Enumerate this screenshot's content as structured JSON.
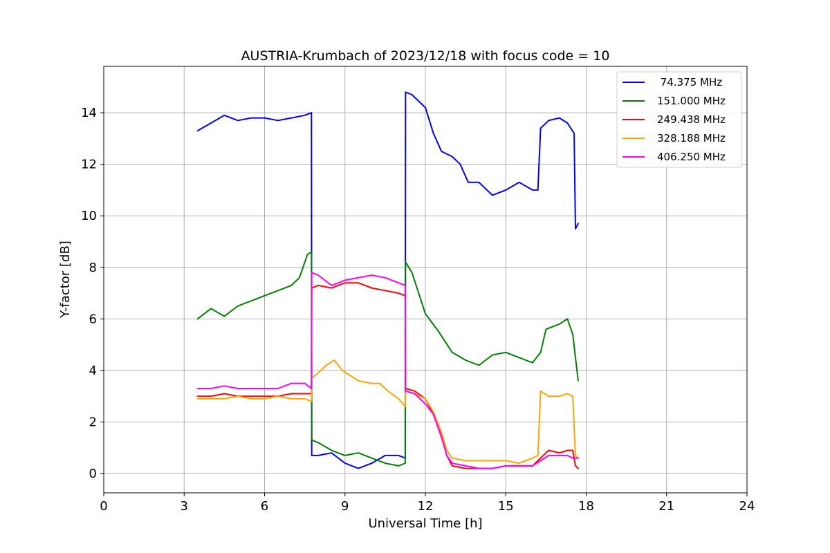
{
  "chart_data": {
    "type": "line",
    "title": "AUSTRIA-Krumbach of 2023/12/18 with focus code = 10",
    "xlabel": "Universal Time [h]",
    "ylabel": "Y-factor [dB]",
    "xlim": [
      0,
      24
    ],
    "ylim": [
      -0.75,
      15.8
    ],
    "xticks": [
      0,
      3,
      6,
      9,
      12,
      15,
      18,
      21,
      24
    ],
    "yticks": [
      0,
      2,
      4,
      6,
      8,
      10,
      12,
      14
    ],
    "grid": true,
    "legend_position": "top-right",
    "series": [
      {
        "name": " 74.375 MHz",
        "color": "#0000ff",
        "x": [
          3.5,
          4.0,
          4.5,
          5.0,
          5.5,
          6.0,
          6.5,
          7.0,
          7.5,
          7.75,
          7.76,
          8.0,
          8.5,
          9.0,
          9.5,
          10.0,
          10.5,
          11.0,
          11.25,
          11.26,
          11.5,
          12.0,
          12.3,
          12.6,
          13.0,
          13.3,
          13.6,
          14.0,
          14.5,
          15.0,
          15.5,
          16.0,
          16.2,
          16.3,
          16.6,
          17.0,
          17.3,
          17.55,
          17.6,
          17.7
        ],
        "y": [
          13.3,
          13.6,
          13.9,
          13.7,
          13.8,
          13.8,
          13.7,
          13.8,
          13.9,
          14.0,
          0.7,
          0.7,
          0.8,
          0.4,
          0.2,
          0.4,
          0.7,
          0.7,
          0.6,
          14.8,
          14.7,
          14.2,
          13.2,
          12.5,
          12.3,
          12.0,
          11.3,
          11.3,
          10.8,
          11.0,
          11.3,
          11.0,
          11.0,
          13.4,
          13.7,
          13.8,
          13.6,
          13.2,
          9.5,
          9.7
        ]
      },
      {
        "name": "151.000 MHz",
        "color": "#008000",
        "x": [
          3.5,
          4.0,
          4.5,
          5.0,
          5.5,
          6.0,
          6.5,
          7.0,
          7.3,
          7.6,
          7.75,
          7.76,
          8.0,
          8.5,
          9.0,
          9.5,
          10.0,
          10.5,
          11.0,
          11.25,
          11.26,
          11.5,
          12.0,
          12.5,
          13.0,
          13.5,
          14.0,
          14.5,
          15.0,
          15.5,
          16.0,
          16.3,
          16.5,
          17.0,
          17.3,
          17.5,
          17.7
        ],
        "y": [
          6.0,
          6.4,
          6.1,
          6.5,
          6.7,
          6.9,
          7.1,
          7.3,
          7.6,
          8.5,
          8.6,
          1.3,
          1.2,
          0.9,
          0.7,
          0.8,
          0.6,
          0.4,
          0.3,
          0.4,
          8.2,
          7.8,
          6.2,
          5.5,
          4.7,
          4.4,
          4.2,
          4.6,
          4.7,
          4.5,
          4.3,
          4.7,
          5.6,
          5.8,
          6.0,
          5.4,
          3.6
        ]
      },
      {
        "name": "249.438 MHz",
        "color": "#ff0000",
        "x": [
          3.5,
          4.0,
          4.5,
          5.0,
          5.5,
          6.0,
          6.5,
          7.0,
          7.5,
          7.75,
          7.76,
          8.0,
          8.5,
          9.0,
          9.5,
          10.0,
          10.5,
          11.0,
          11.25,
          11.26,
          11.6,
          12.0,
          12.3,
          12.6,
          12.8,
          13.0,
          13.5,
          14.0,
          14.5,
          15.0,
          15.5,
          16.0,
          16.3,
          16.6,
          17.0,
          17.3,
          17.5,
          17.6,
          17.7
        ],
        "y": [
          3.0,
          3.0,
          3.1,
          3.0,
          3.0,
          3.0,
          3.0,
          3.1,
          3.1,
          3.1,
          7.2,
          7.3,
          7.2,
          7.4,
          7.4,
          7.2,
          7.1,
          7.0,
          6.9,
          3.3,
          3.2,
          2.9,
          2.3,
          1.5,
          0.7,
          0.3,
          0.2,
          0.2,
          0.2,
          0.3,
          0.3,
          0.3,
          0.6,
          0.9,
          0.8,
          0.9,
          0.9,
          0.3,
          0.2
        ]
      },
      {
        "name": "328.188 MHz",
        "color": "#ffa500",
        "x": [
          3.5,
          4.0,
          4.5,
          5.0,
          5.5,
          6.0,
          6.5,
          7.0,
          7.5,
          7.75,
          7.76,
          8.0,
          8.3,
          8.6,
          8.9,
          9.2,
          9.5,
          10.0,
          10.3,
          10.6,
          11.0,
          11.25,
          11.26,
          11.6,
          12.0,
          12.3,
          12.6,
          12.8,
          13.0,
          13.5,
          14.0,
          14.5,
          15.0,
          15.5,
          16.0,
          16.2,
          16.3,
          16.6,
          17.0,
          17.3,
          17.5,
          17.6,
          17.7
        ],
        "y": [
          2.9,
          2.9,
          2.9,
          3.0,
          2.9,
          2.9,
          3.0,
          2.9,
          2.9,
          2.8,
          3.7,
          3.9,
          4.2,
          4.4,
          4.0,
          3.8,
          3.6,
          3.5,
          3.5,
          3.2,
          2.9,
          2.6,
          3.2,
          3.1,
          2.9,
          2.4,
          1.6,
          0.9,
          0.6,
          0.5,
          0.5,
          0.5,
          0.5,
          0.4,
          0.6,
          0.7,
          3.2,
          3.0,
          3.0,
          3.1,
          3.0,
          0.7,
          0.6
        ]
      },
      {
        "name": "406.250 MHz",
        "color": "#ff00ff",
        "x": [
          3.5,
          4.0,
          4.5,
          5.0,
          5.5,
          6.0,
          6.5,
          7.0,
          7.5,
          7.75,
          7.76,
          8.0,
          8.5,
          9.0,
          9.5,
          10.0,
          10.5,
          11.0,
          11.25,
          11.26,
          11.6,
          12.0,
          12.3,
          12.6,
          12.8,
          13.0,
          13.5,
          14.0,
          14.5,
          15.0,
          15.5,
          16.0,
          16.3,
          16.6,
          17.0,
          17.3,
          17.5,
          17.6,
          17.7
        ],
        "y": [
          3.3,
          3.3,
          3.4,
          3.3,
          3.3,
          3.3,
          3.3,
          3.5,
          3.5,
          3.3,
          7.8,
          7.7,
          7.3,
          7.5,
          7.6,
          7.7,
          7.6,
          7.4,
          7.3,
          3.2,
          3.1,
          2.7,
          2.3,
          1.4,
          0.7,
          0.4,
          0.3,
          0.2,
          0.2,
          0.3,
          0.3,
          0.3,
          0.5,
          0.7,
          0.7,
          0.7,
          0.6,
          0.6,
          0.6
        ]
      }
    ]
  }
}
